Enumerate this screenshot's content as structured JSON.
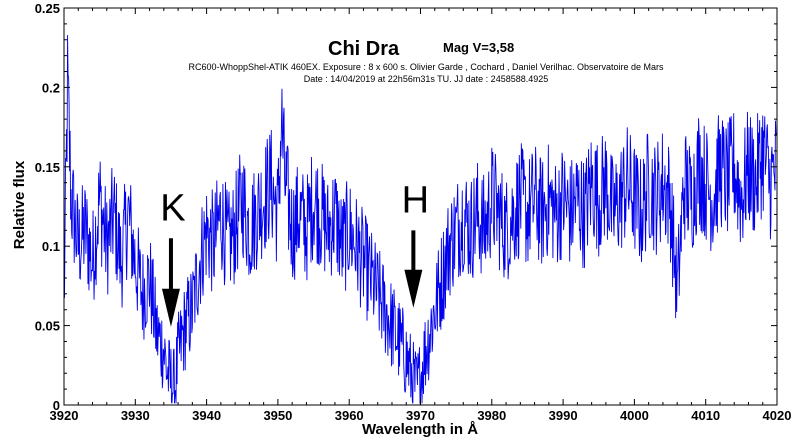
{
  "chart_data": {
    "type": "line",
    "title": "Chi Dra",
    "title_suffix": "Mag V=3,58",
    "subtitle_lines": [
      "RC600-WhoppShel-ATIK 460EX. Exposure : 8 x 600 s. Olivier Garde , Cochard , Daniel Verilhac. Observatoire de Mars",
      "Date : 14/04/2019 at 22h56m31s TU. JJ date : 2458588.4925"
    ],
    "xlabel": "Wavelength in Å",
    "ylabel": "Relative flux",
    "xlim": [
      3920,
      4020
    ],
    "ylim": [
      0,
      0.25
    ],
    "xticks": [
      3920,
      3930,
      3940,
      3950,
      3960,
      3970,
      3980,
      3990,
      4000,
      4010,
      4020
    ],
    "xtick_labels": [
      "3920",
      "3930",
      "3940",
      "3950",
      "3960",
      "3970",
      "3980",
      "3990",
      "4000",
      "4010",
      "4020"
    ],
    "yticks": [
      0,
      0.05,
      0.1,
      0.15,
      0.2,
      0.25
    ],
    "ytick_labels": [
      "0",
      "0.05",
      "0.1",
      "0.15",
      "0.2",
      "0.25"
    ],
    "grid": false,
    "line_color": "#0000ee",
    "series": [
      {
        "x": [
          3920,
          3920.5,
          3921,
          3922,
          3923,
          3924,
          3925,
          3926,
          3927,
          3928,
          3929,
          3930,
          3931,
          3932,
          3933,
          3934,
          3934.5,
          3935,
          3935.5,
          3936,
          3937,
          3938,
          3939,
          3940,
          3941,
          3942,
          3943,
          3944,
          3945,
          3946,
          3947,
          3948,
          3949,
          3950,
          3950.5,
          3951,
          3952,
          3953,
          3954,
          3955,
          3956,
          3957,
          3958,
          3959,
          3960,
          3961,
          3962,
          3963,
          3964,
          3965,
          3966,
          3967,
          3968,
          3968.5,
          3969,
          3969.5,
          3970,
          3970.5,
          3971,
          3972,
          3973,
          3974,
          3975,
          3976,
          3977,
          3978,
          3979,
          3980,
          3981,
          3982,
          3983,
          3984,
          3985,
          3986,
          3987,
          3988,
          3989,
          3990,
          3991,
          3992,
          3993,
          3994,
          3995,
          3996,
          3997,
          3998,
          3999,
          4000,
          4001,
          4002,
          4003,
          4004,
          4005,
          4006,
          4007,
          4008,
          4009,
          4010,
          4011,
          4012,
          4013,
          4014,
          4015,
          4016,
          4017,
          4018,
          4019,
          4020
        ],
        "y": [
          0.06,
          0.2,
          0.13,
          0.1,
          0.11,
          0.09,
          0.13,
          0.1,
          0.12,
          0.09,
          0.12,
          0.09,
          0.07,
          0.08,
          0.045,
          0.035,
          0.02,
          0.015,
          0.01,
          0.03,
          0.05,
          0.06,
          0.09,
          0.11,
          0.1,
          0.12,
          0.1,
          0.11,
          0.13,
          0.11,
          0.12,
          0.13,
          0.14,
          0.12,
          0.18,
          0.14,
          0.11,
          0.12,
          0.11,
          0.13,
          0.12,
          0.11,
          0.12,
          0.1,
          0.11,
          0.1,
          0.09,
          0.08,
          0.07,
          0.06,
          0.05,
          0.04,
          0.03,
          0.022,
          0.015,
          0.01,
          0.018,
          0.03,
          0.04,
          0.06,
          0.08,
          0.1,
          0.11,
          0.12,
          0.11,
          0.12,
          0.11,
          0.13,
          0.12,
          0.11,
          0.12,
          0.13,
          0.12,
          0.13,
          0.12,
          0.13,
          0.12,
          0.13,
          0.12,
          0.13,
          0.12,
          0.14,
          0.13,
          0.14,
          0.12,
          0.13,
          0.14,
          0.13,
          0.12,
          0.14,
          0.13,
          0.14,
          0.13,
          0.07,
          0.14,
          0.13,
          0.15,
          0.14,
          0.13,
          0.15,
          0.14,
          0.15,
          0.13,
          0.15,
          0.14,
          0.16,
          0.14,
          0.15
        ]
      }
    ],
    "annotations": [
      {
        "text": "K",
        "x": 3935,
        "y_start": 0.105,
        "y_end": 0.048
      },
      {
        "text": "H",
        "x": 3969,
        "y_start": 0.11,
        "y_end": 0.06
      }
    ]
  }
}
